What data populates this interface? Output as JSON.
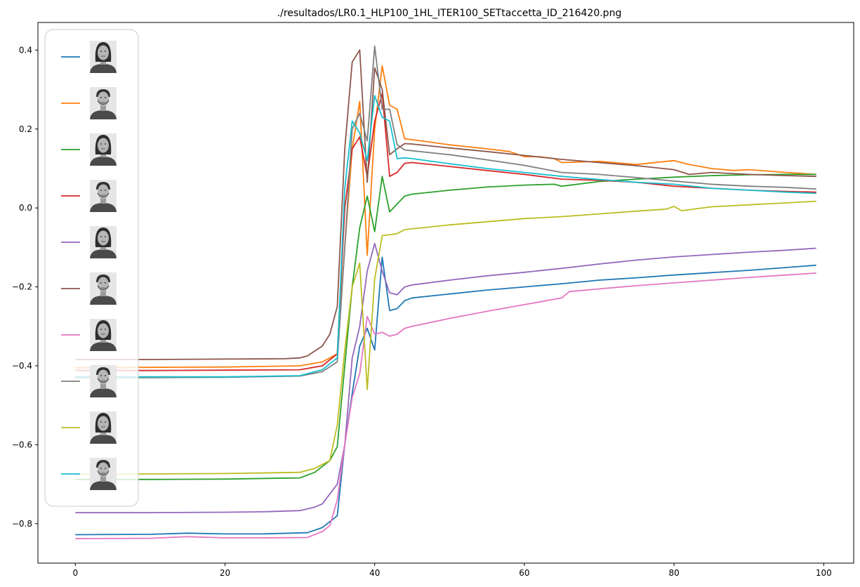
{
  "chart_data": {
    "type": "line",
    "title": "./resultados/LR0.1_HLP100_1HL_ITER100_SETtaccetta_ID_216420.png",
    "xlabel": "",
    "ylabel": "",
    "xlim": [
      -5,
      104
    ],
    "ylim": [
      -0.9,
      0.47
    ],
    "xticks": [
      0,
      20,
      40,
      60,
      80,
      100
    ],
    "yticks": [
      -0.8,
      -0.6,
      -0.4,
      -0.2,
      0.0,
      0.2,
      0.4
    ],
    "xtick_labels": [
      "0",
      "20",
      "40",
      "60",
      "80",
      "100"
    ],
    "ytick_labels": [
      "−0.8",
      "−0.6",
      "−0.4",
      "−0.2",
      "0.0",
      "0.2",
      "0.4"
    ],
    "grid": false,
    "legend_position": "upper-left",
    "series": [
      {
        "color": "#1f77b4",
        "legend_icon": "female-face-icon",
        "points": [
          [
            0,
            -0.828
          ],
          [
            10,
            -0.827
          ],
          [
            15,
            -0.824
          ],
          [
            20,
            -0.826
          ],
          [
            25,
            -0.826
          ],
          [
            31,
            -0.823
          ],
          [
            33,
            -0.81
          ],
          [
            35,
            -0.78
          ],
          [
            36,
            -0.6
          ],
          [
            37,
            -0.47
          ],
          [
            38,
            -0.35
          ],
          [
            39,
            -0.305
          ],
          [
            40,
            -0.36
          ],
          [
            41,
            -0.125
          ],
          [
            42,
            -0.26
          ],
          [
            43,
            -0.255
          ],
          [
            44,
            -0.235
          ],
          [
            45,
            -0.228
          ],
          [
            50,
            -0.218
          ],
          [
            55,
            -0.208
          ],
          [
            60,
            -0.2
          ],
          [
            65,
            -0.192
          ],
          [
            70,
            -0.183
          ],
          [
            75,
            -0.177
          ],
          [
            80,
            -0.17
          ],
          [
            85,
            -0.164
          ],
          [
            90,
            -0.158
          ],
          [
            95,
            -0.151
          ],
          [
            99,
            -0.145
          ]
        ]
      },
      {
        "color": "#ff7f0e",
        "legend_icon": "male-face-icon",
        "points": [
          [
            0,
            -0.405
          ],
          [
            10,
            -0.404
          ],
          [
            20,
            -0.403
          ],
          [
            30,
            -0.4
          ],
          [
            33,
            -0.39
          ],
          [
            35,
            -0.37
          ],
          [
            36,
            -0.1
          ],
          [
            37,
            0.15
          ],
          [
            38,
            0.27
          ],
          [
            39,
            -0.12
          ],
          [
            40,
            0.2
          ],
          [
            41,
            0.36
          ],
          [
            42,
            0.26
          ],
          [
            43,
            0.25
          ],
          [
            44,
            0.175
          ],
          [
            45,
            0.173
          ],
          [
            50,
            0.16
          ],
          [
            55,
            0.15
          ],
          [
            58,
            0.143
          ],
          [
            60,
            0.13
          ],
          [
            62,
            0.13
          ],
          [
            64,
            0.125
          ],
          [
            65,
            0.115
          ],
          [
            70,
            0.118
          ],
          [
            75,
            0.11
          ],
          [
            80,
            0.12
          ],
          [
            82,
            0.11
          ],
          [
            85,
            0.1
          ],
          [
            88,
            0.095
          ],
          [
            90,
            0.097
          ],
          [
            95,
            0.09
          ],
          [
            99,
            0.085
          ]
        ]
      },
      {
        "color": "#2ca02c",
        "legend_icon": "female-face-icon",
        "points": [
          [
            0,
            -0.688
          ],
          [
            10,
            -0.688
          ],
          [
            20,
            -0.687
          ],
          [
            30,
            -0.684
          ],
          [
            32,
            -0.67
          ],
          [
            34,
            -0.64
          ],
          [
            35,
            -0.605
          ],
          [
            36,
            -0.4
          ],
          [
            37,
            -0.2
          ],
          [
            38,
            -0.05
          ],
          [
            39,
            0.03
          ],
          [
            40,
            -0.06
          ],
          [
            41,
            0.08
          ],
          [
            42,
            -0.01
          ],
          [
            43,
            0.01
          ],
          [
            44,
            0.03
          ],
          [
            45,
            0.035
          ],
          [
            50,
            0.045
          ],
          [
            55,
            0.053
          ],
          [
            60,
            0.058
          ],
          [
            64,
            0.06
          ],
          [
            65,
            0.055
          ],
          [
            70,
            0.067
          ],
          [
            75,
            0.073
          ],
          [
            80,
            0.078
          ],
          [
            85,
            0.082
          ],
          [
            90,
            0.084
          ],
          [
            95,
            0.085
          ],
          [
            99,
            0.085
          ]
        ]
      },
      {
        "color": "#d62728",
        "legend_icon": "male-face-icon",
        "points": [
          [
            0,
            -0.412
          ],
          [
            10,
            -0.412
          ],
          [
            20,
            -0.411
          ],
          [
            30,
            -0.41
          ],
          [
            33,
            -0.4
          ],
          [
            35,
            -0.37
          ],
          [
            36,
            0.0
          ],
          [
            37,
            0.15
          ],
          [
            38,
            0.18
          ],
          [
            39,
            0.08
          ],
          [
            40,
            0.22
          ],
          [
            41,
            0.29
          ],
          [
            42,
            0.08
          ],
          [
            43,
            0.09
          ],
          [
            44,
            0.113
          ],
          [
            45,
            0.115
          ],
          [
            50,
            0.105
          ],
          [
            55,
            0.095
          ],
          [
            60,
            0.085
          ],
          [
            65,
            0.073
          ],
          [
            70,
            0.07
          ],
          [
            75,
            0.065
          ],
          [
            80,
            0.055
          ],
          [
            85,
            0.05
          ],
          [
            90,
            0.045
          ],
          [
            95,
            0.042
          ],
          [
            99,
            0.04
          ]
        ]
      },
      {
        "color": "#9467bd",
        "legend_icon": "female-face-icon",
        "points": [
          [
            0,
            -0.772
          ],
          [
            10,
            -0.772
          ],
          [
            20,
            -0.771
          ],
          [
            25,
            -0.77
          ],
          [
            30,
            -0.767
          ],
          [
            32,
            -0.758
          ],
          [
            33,
            -0.75
          ],
          [
            35,
            -0.7
          ],
          [
            36,
            -0.6
          ],
          [
            37,
            -0.38
          ],
          [
            38,
            -0.3
          ],
          [
            39,
            -0.16
          ],
          [
            40,
            -0.09
          ],
          [
            41,
            -0.16
          ],
          [
            42,
            -0.215
          ],
          [
            43,
            -0.22
          ],
          [
            44,
            -0.2
          ],
          [
            45,
            -0.195
          ],
          [
            50,
            -0.183
          ],
          [
            55,
            -0.172
          ],
          [
            60,
            -0.163
          ],
          [
            65,
            -0.153
          ],
          [
            70,
            -0.142
          ],
          [
            75,
            -0.132
          ],
          [
            80,
            -0.124
          ],
          [
            85,
            -0.118
          ],
          [
            90,
            -0.112
          ],
          [
            95,
            -0.107
          ],
          [
            99,
            -0.102
          ]
        ]
      },
      {
        "color": "#8c564b",
        "legend_icon": "male-face-icon",
        "points": [
          [
            0,
            -0.384
          ],
          [
            10,
            -0.384
          ],
          [
            20,
            -0.383
          ],
          [
            28,
            -0.382
          ],
          [
            30,
            -0.38
          ],
          [
            31,
            -0.375
          ],
          [
            33,
            -0.35
          ],
          [
            34,
            -0.32
          ],
          [
            35,
            -0.25
          ],
          [
            36,
            0.15
          ],
          [
            37,
            0.37
          ],
          [
            38,
            0.4
          ],
          [
            39,
            0.065
          ],
          [
            40,
            0.355
          ],
          [
            41,
            0.3
          ],
          [
            42,
            0.135
          ],
          [
            43,
            0.15
          ],
          [
            44,
            0.163
          ],
          [
            45,
            0.162
          ],
          [
            50,
            0.152
          ],
          [
            55,
            0.143
          ],
          [
            60,
            0.133
          ],
          [
            65,
            0.123
          ],
          [
            70,
            0.115
          ],
          [
            75,
            0.107
          ],
          [
            80,
            0.097
          ],
          [
            82,
            0.085
          ],
          [
            85,
            0.09
          ],
          [
            90,
            0.085
          ],
          [
            95,
            0.082
          ],
          [
            99,
            0.08
          ]
        ]
      },
      {
        "color": "#e377c2",
        "legend_icon": "female-face-icon",
        "points": [
          [
            0,
            -0.838
          ],
          [
            10,
            -0.837
          ],
          [
            15,
            -0.833
          ],
          [
            20,
            -0.836
          ],
          [
            25,
            -0.836
          ],
          [
            31,
            -0.835
          ],
          [
            33,
            -0.82
          ],
          [
            34,
            -0.805
          ],
          [
            35,
            -0.74
          ],
          [
            36,
            -0.6
          ],
          [
            37,
            -0.48
          ],
          [
            38,
            -0.42
          ],
          [
            39,
            -0.275
          ],
          [
            40,
            -0.32
          ],
          [
            41,
            -0.315
          ],
          [
            42,
            -0.325
          ],
          [
            43,
            -0.32
          ],
          [
            44,
            -0.305
          ],
          [
            45,
            -0.3
          ],
          [
            50,
            -0.28
          ],
          [
            55,
            -0.262
          ],
          [
            60,
            -0.245
          ],
          [
            65,
            -0.228
          ],
          [
            66,
            -0.212
          ],
          [
            70,
            -0.205
          ],
          [
            75,
            -0.197
          ],
          [
            80,
            -0.19
          ],
          [
            85,
            -0.183
          ],
          [
            90,
            -0.176
          ],
          [
            95,
            -0.17
          ],
          [
            99,
            -0.165
          ]
        ]
      },
      {
        "color": "#7f7f7f",
        "legend_icon": "male-face-icon",
        "points": [
          [
            0,
            -0.43
          ],
          [
            10,
            -0.43
          ],
          [
            20,
            -0.429
          ],
          [
            30,
            -0.426
          ],
          [
            33,
            -0.415
          ],
          [
            35,
            -0.39
          ],
          [
            36,
            -0.1
          ],
          [
            37,
            0.2
          ],
          [
            38,
            0.24
          ],
          [
            39,
            0.17
          ],
          [
            40,
            0.41
          ],
          [
            41,
            0.25
          ],
          [
            42,
            0.25
          ],
          [
            43,
            0.16
          ],
          [
            44,
            0.147
          ],
          [
            45,
            0.145
          ],
          [
            50,
            0.135
          ],
          [
            55,
            0.122
          ],
          [
            60,
            0.108
          ],
          [
            65,
            0.09
          ],
          [
            70,
            0.085
          ],
          [
            75,
            0.077
          ],
          [
            80,
            0.068
          ],
          [
            85,
            0.06
          ],
          [
            90,
            0.055
          ],
          [
            95,
            0.052
          ],
          [
            99,
            0.048
          ]
        ]
      },
      {
        "color": "#bcbd22",
        "legend_icon": "female-face-icon",
        "points": [
          [
            0,
            -0.675
          ],
          [
            10,
            -0.674
          ],
          [
            20,
            -0.673
          ],
          [
            30,
            -0.67
          ],
          [
            32,
            -0.66
          ],
          [
            34,
            -0.64
          ],
          [
            35,
            -0.55
          ],
          [
            36,
            -0.36
          ],
          [
            37,
            -0.2
          ],
          [
            38,
            -0.14
          ],
          [
            39,
            -0.46
          ],
          [
            40,
            -0.18
          ],
          [
            41,
            -0.07
          ],
          [
            42,
            -0.068
          ],
          [
            43,
            -0.065
          ],
          [
            44,
            -0.055
          ],
          [
            45,
            -0.053
          ],
          [
            50,
            -0.043
          ],
          [
            55,
            -0.035
          ],
          [
            60,
            -0.027
          ],
          [
            65,
            -0.022
          ],
          [
            70,
            -0.015
          ],
          [
            75,
            -0.008
          ],
          [
            79,
            -0.003
          ],
          [
            80,
            0.004
          ],
          [
            81,
            -0.007
          ],
          [
            85,
            0.003
          ],
          [
            90,
            0.008
          ],
          [
            95,
            0.013
          ],
          [
            99,
            0.017
          ]
        ]
      },
      {
        "color": "#17becf",
        "legend_icon": "male-face-icon",
        "points": [
          [
            0,
            -0.428
          ],
          [
            10,
            -0.428
          ],
          [
            20,
            -0.428
          ],
          [
            30,
            -0.425
          ],
          [
            33,
            -0.41
          ],
          [
            35,
            -0.38
          ],
          [
            36,
            0.05
          ],
          [
            37,
            0.22
          ],
          [
            38,
            0.19
          ],
          [
            39,
            0.12
          ],
          [
            40,
            0.285
          ],
          [
            41,
            0.23
          ],
          [
            42,
            0.22
          ],
          [
            43,
            0.125
          ],
          [
            44,
            0.127
          ],
          [
            45,
            0.125
          ],
          [
            50,
            0.112
          ],
          [
            55,
            0.1
          ],
          [
            60,
            0.09
          ],
          [
            65,
            0.08
          ],
          [
            70,
            0.072
          ],
          [
            75,
            0.065
          ],
          [
            80,
            0.06
          ],
          [
            85,
            0.05
          ],
          [
            90,
            0.045
          ],
          [
            95,
            0.04
          ],
          [
            99,
            0.037
          ]
        ]
      }
    ]
  }
}
